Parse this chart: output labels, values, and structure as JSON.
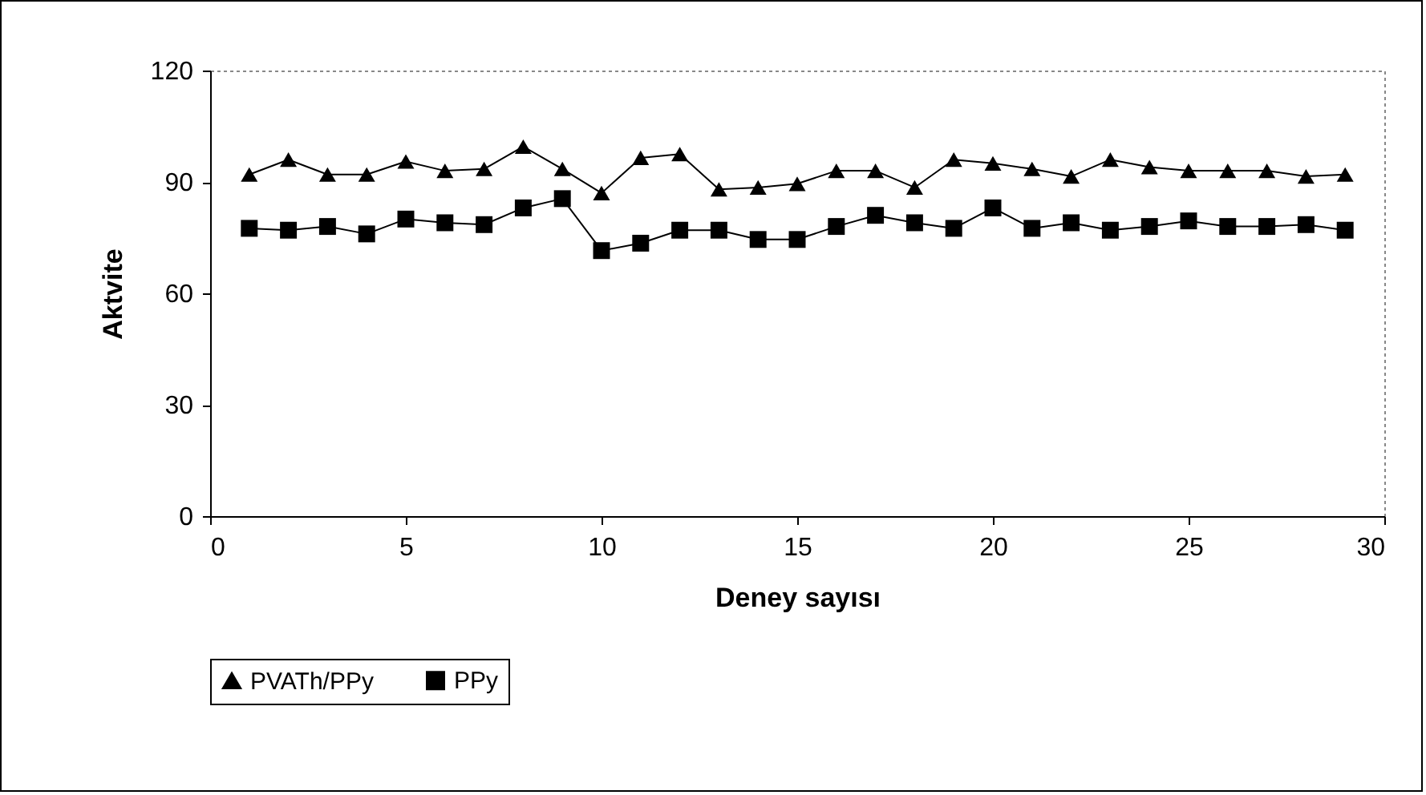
{
  "chart_data": {
    "type": "line",
    "xlabel": "Deney sayısı",
    "ylabel": "Aktvite",
    "x": [
      1,
      2,
      3,
      4,
      5,
      6,
      7,
      8,
      9,
      10,
      11,
      12,
      13,
      14,
      15,
      16,
      17,
      18,
      19,
      20,
      21,
      22,
      23,
      24,
      25,
      26,
      27,
      28,
      29
    ],
    "series": [
      {
        "name": "PVATh/PPy",
        "color": "#000000",
        "marker": "triangle",
        "values": [
          92,
          96,
          92,
          92,
          95.5,
          93,
          93.5,
          99.5,
          93.5,
          87,
          96.5,
          97.5,
          88,
          88.5,
          89.5,
          93,
          93,
          88.5,
          96,
          95,
          93.5,
          91.5,
          96,
          94,
          93,
          93,
          93,
          91.5,
          92
        ]
      },
      {
        "name": "PPy",
        "color": "#000000",
        "marker": "square",
        "values": [
          77.5,
          77,
          78,
          76,
          80,
          79,
          78.5,
          83,
          85.5,
          71.5,
          73.5,
          77,
          77,
          74.5,
          74.5,
          78,
          81,
          79,
          77.5,
          83,
          77.5,
          79,
          77,
          78,
          79.5,
          78,
          78,
          78.5,
          77
        ]
      }
    ],
    "xlim": [
      0,
      30
    ],
    "xticks": [
      0,
      5,
      10,
      15,
      20,
      25,
      30
    ],
    "ylim": [
      0,
      120
    ],
    "yticks": [
      0,
      30,
      60,
      90,
      120
    ],
    "grid": false,
    "legend": "bottom",
    "line_style": "solid"
  }
}
